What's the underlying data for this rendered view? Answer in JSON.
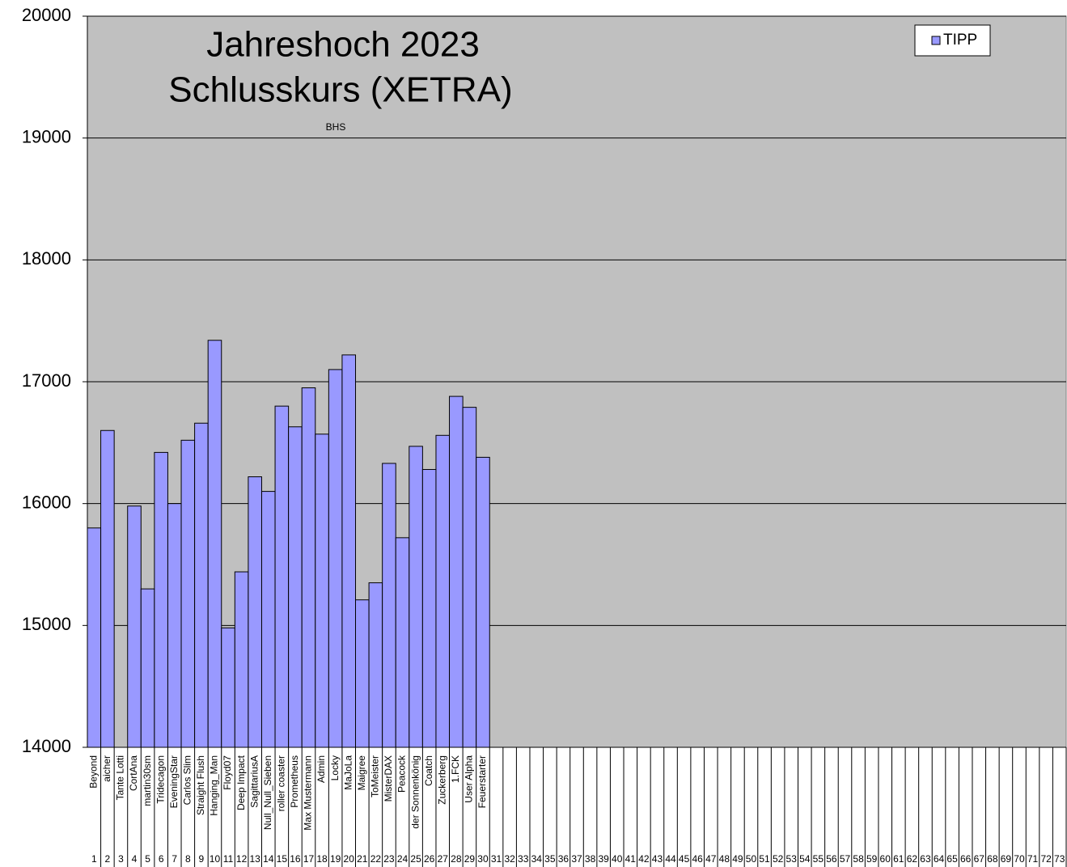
{
  "chart_data": {
    "type": "bar",
    "title_line1": "Jahreshoch 2023",
    "title_line2": "Schlusskurs (XETRA)",
    "annotation": "BHS",
    "categories": [
      "Beyond",
      "aicher",
      "Tante Lotti",
      "CortAna",
      "martin30sm",
      "Tridecagon",
      "EveningStar",
      "Carlos Slim",
      "Straight Flush",
      "Hanging_Man",
      "Floyd07",
      "Deep Impact",
      "SagittariusA",
      "Null_Null_Sieben",
      "roller coaster",
      "Prometheus",
      "Max Mustermann",
      "Admin",
      "Locky",
      "MaJoLa",
      "Maigree",
      "ToMeister",
      "MisterDAX",
      "Peacock",
      "der Sonnenkönig",
      "Coatch",
      "Zuckerberg",
      "1.FCK",
      "User Alpha",
      "Feuerstarter",
      null,
      null,
      null,
      null,
      null,
      null,
      null,
      null,
      null,
      null,
      null,
      null,
      null,
      null,
      null,
      null,
      null,
      null,
      null,
      null,
      null,
      null,
      null,
      null,
      null,
      null,
      null,
      null,
      null,
      null,
      null,
      null,
      null,
      null,
      null,
      null,
      null,
      null,
      null,
      null,
      null,
      null,
      null
    ],
    "category_numbers": [
      1,
      2,
      3,
      4,
      5,
      6,
      7,
      8,
      9,
      10,
      11,
      12,
      13,
      14,
      15,
      16,
      17,
      18,
      19,
      20,
      21,
      22,
      23,
      24,
      25,
      26,
      27,
      28,
      29,
      30,
      31,
      32,
      33,
      34,
      35,
      36,
      37,
      38,
      39,
      40,
      41,
      42,
      43,
      44,
      45,
      46,
      47,
      48,
      49,
      50,
      51,
      52,
      53,
      54,
      55,
      56,
      57,
      58,
      59,
      60,
      61,
      62,
      63,
      64,
      65,
      66,
      67,
      68,
      69,
      70,
      71,
      72,
      73
    ],
    "series": [
      {
        "name": "TIPP",
        "color": "#9999ff",
        "values": [
          15800,
          16600,
          null,
          15980,
          15300,
          16420,
          16000,
          16520,
          16660,
          17340,
          14980,
          15440,
          16220,
          16100,
          16800,
          16630,
          16950,
          16570,
          17100,
          17220,
          15210,
          15350,
          16330,
          15720,
          16470,
          16280,
          16560,
          16880,
          16790,
          16380,
          null,
          null,
          null,
          null,
          null,
          null,
          null,
          null,
          null,
          null,
          null,
          null,
          null,
          null,
          null,
          null,
          null,
          null,
          null,
          null,
          null,
          null,
          null,
          null,
          null,
          null,
          null,
          null,
          null,
          null,
          null,
          null,
          null,
          null,
          null,
          null,
          null,
          null,
          null,
          null,
          null,
          null,
          null
        ]
      }
    ],
    "ylim": [
      14000,
      20000
    ],
    "yticks": [
      14000,
      15000,
      16000,
      17000,
      18000,
      19000,
      20000
    ],
    "grid": true,
    "legend": "top-right"
  }
}
